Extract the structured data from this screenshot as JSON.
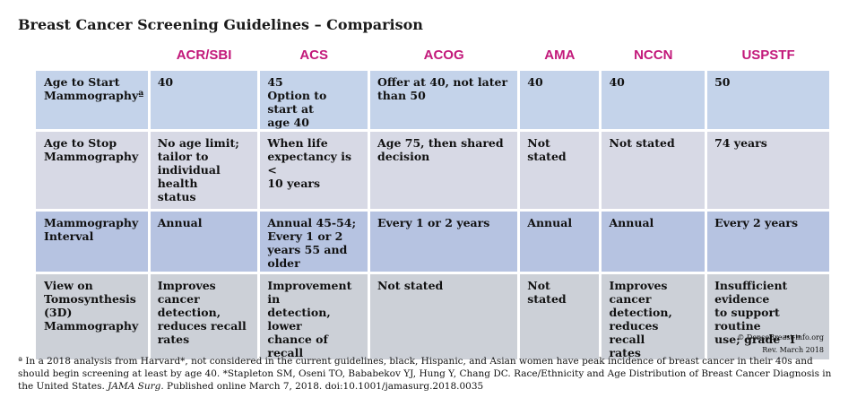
{
  "title": "Breast Cancer Screening Guidelines – Comparison",
  "columns": [
    "ACR/SBI",
    "ACS",
    "ACOG",
    "AMA",
    "NCCN",
    "USPSTF"
  ],
  "rows": [
    {
      "label_lines": [
        "Age to Start",
        "Mammographyª"
      ],
      "cells": [
        [
          "40"
        ],
        [
          "45",
          "Option to start at",
          "age 40"
        ],
        [
          "Offer at 40, not later",
          "than 50"
        ],
        [
          "40"
        ],
        [
          "40"
        ],
        [
          "50"
        ]
      ]
    },
    {
      "label_lines": [
        "Age to Stop",
        "Mammography"
      ],
      "cells": [
        [
          "No age limit;",
          "tailor to",
          "individual health",
          "status"
        ],
        [
          "When life",
          "expectancy is  <",
          "10 years"
        ],
        [
          "Age 75, then shared",
          "decision"
        ],
        [
          "Not stated"
        ],
        [
          "Not stated"
        ],
        [
          "74 years"
        ]
      ]
    },
    {
      "label_lines": [
        "Mammography",
        "Interval"
      ],
      "cells": [
        [
          "Annual"
        ],
        [
          "Annual 45-54;",
          "Every 1 or 2",
          "years 55 and",
          "older"
        ],
        [
          "Every 1 or 2 years"
        ],
        [
          "Annual"
        ],
        [
          "Annual"
        ],
        [
          "Every 2 years"
        ]
      ]
    },
    {
      "label_lines": [
        "View on",
        "Tomosynthesis",
        "(3D)",
        "Mammography"
      ],
      "cells": [
        [
          "Improves cancer",
          "detection,",
          "reduces recall",
          "rates"
        ],
        [
          "Improvement in",
          "detection, lower",
          "chance of recall"
        ],
        [
          "Not stated"
        ],
        [
          "Not stated"
        ],
        [
          "Improves",
          "cancer",
          "detection,",
          "reduces recall",
          "rates"
        ],
        [
          "Insufficient evidence",
          "to support routine",
          "use; grade \"I\""
        ]
      ]
    }
  ],
  "copyright": "© DenseBreast-info.org",
  "revision": "Rev. March 2018",
  "footnote": {
    "part1": "ª In a 2018 analysis from Harvard*, not considered in the current guidelines, black, Hispanic, and Asian women have peak incidence of breast cancer in their 40s and should begin screening at least by age 40.  *Stapleton SM, Oseni TO, Bababekov YJ, Hung Y, Chang DC. Race/Ethnicity and Age Distribution of Breast Cancer Diagnosis in the United States. ",
    "journal": "JAMA Surg.",
    "part2": " Published online March 7, 2018. doi:10.1001/jamasurg.2018.0035"
  }
}
